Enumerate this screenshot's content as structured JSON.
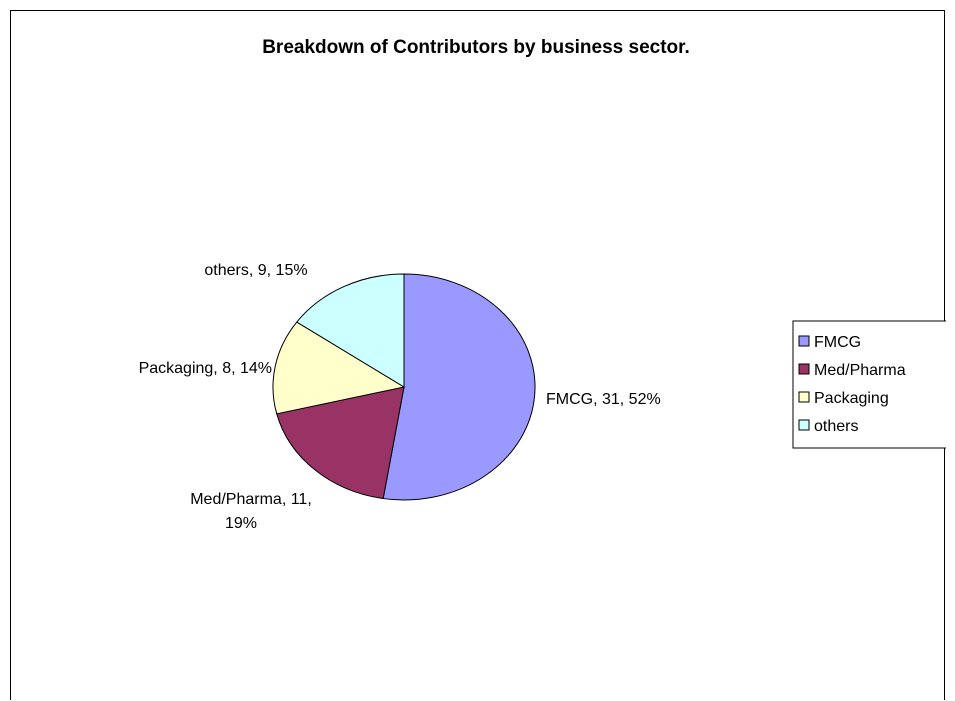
{
  "chart_data": {
    "type": "pie",
    "title": "Breakdown of Contributors by business sector.",
    "categories": [
      "FMCG",
      "Med/Pharma",
      "Packaging",
      "others"
    ],
    "values": [
      31,
      11,
      8,
      9
    ],
    "percentages": [
      "52%",
      "19%",
      "14%",
      "15%"
    ],
    "data_labels": [
      [
        "FMCG, 31, 52%"
      ],
      [
        "Med/Pharma, 11,",
        "19%"
      ],
      [
        "Packaging, 8, 14%"
      ],
      [
        "others, 9, 15%"
      ]
    ],
    "colors": [
      "#9999ff",
      "#993366",
      "#ffffcc",
      "#ccffff"
    ],
    "legend": {
      "position": "right",
      "entries": [
        "FMCG",
        "Med/Pharma",
        "Packaging",
        "others"
      ]
    }
  }
}
